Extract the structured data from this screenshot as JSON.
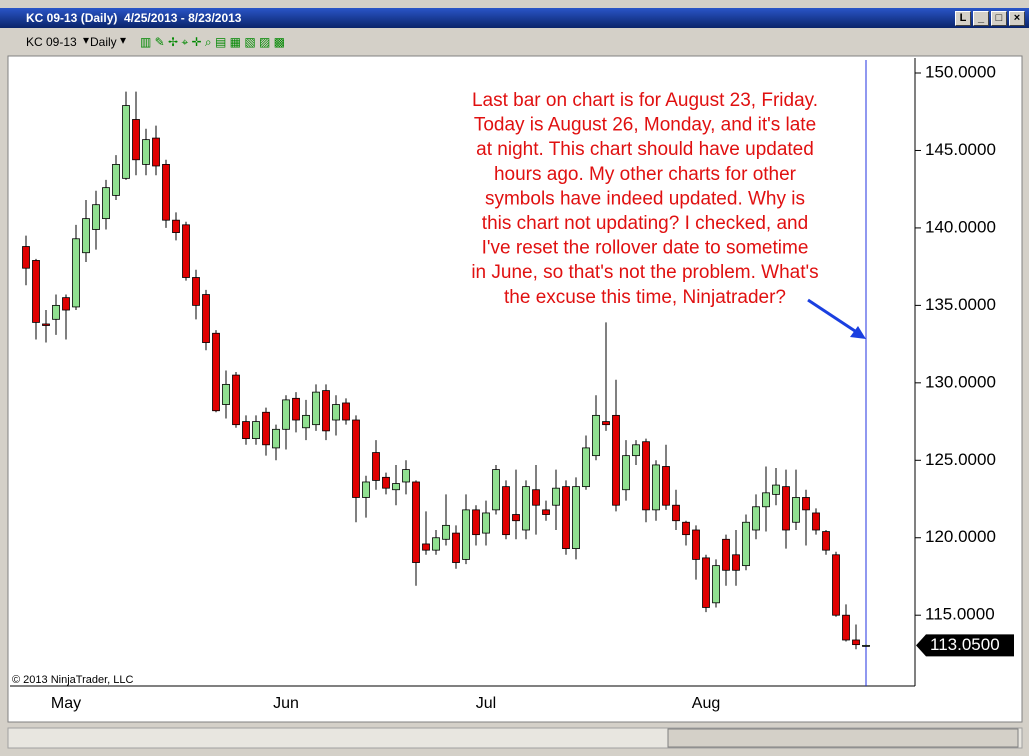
{
  "window": {
    "title": "KC 09-13 (Daily)  4/25/2013 - 8/23/2013",
    "pin_button": "L"
  },
  "toolbar": {
    "instrument": "KC 09-13",
    "interval": "Daily"
  },
  "chart_data": {
    "type": "candlestick",
    "categories": [
      null,
      null,
      null,
      null,
      "May",
      null,
      null,
      null,
      null,
      null,
      null,
      null,
      null,
      null,
      null,
      null,
      null,
      null,
      null,
      null,
      null,
      null,
      null,
      null,
      null,
      null,
      "Jun",
      null,
      null,
      null,
      null,
      null,
      null,
      null,
      null,
      null,
      null,
      null,
      null,
      null,
      null,
      null,
      null,
      null,
      null,
      null,
      "Jul",
      null,
      null,
      null,
      null,
      null,
      null,
      null,
      null,
      null,
      null,
      null,
      null,
      null,
      null,
      null,
      null,
      null,
      null,
      null,
      null,
      null,
      "Aug",
      null,
      null,
      null,
      null,
      null,
      null,
      null,
      null,
      null,
      null,
      null,
      null,
      null,
      null,
      null,
      null
    ],
    "open": [
      138.8,
      137.9,
      133.8,
      134.1,
      135.5,
      134.9,
      138.4,
      139.9,
      140.6,
      142.1,
      143.2,
      147.0,
      144.1,
      145.8,
      144.1,
      140.5,
      140.2,
      136.8,
      135.7,
      133.2,
      128.6,
      130.5,
      127.5,
      126.4,
      128.1,
      125.8,
      127.0,
      129.0,
      127.1,
      127.3,
      129.5,
      127.6,
      128.7,
      127.6,
      122.6,
      125.5,
      123.9,
      123.1,
      123.6,
      123.6,
      119.6,
      119.2,
      119.9,
      120.3,
      118.6,
      121.8,
      120.3,
      121.8,
      123.3,
      121.5,
      120.5,
      123.1,
      121.8,
      122.1,
      123.3,
      119.3,
      123.3,
      125.3,
      127.5,
      127.9,
      123.1,
      125.3,
      126.2,
      121.8,
      124.6,
      122.1,
      121.0,
      120.5,
      118.7,
      115.8,
      119.9,
      118.9,
      118.2,
      120.5,
      122.0,
      122.8,
      123.3,
      121.0,
      122.6,
      121.6,
      120.4,
      118.9,
      115.0,
      113.4,
      113.05
    ],
    "high": [
      139.5,
      138.0,
      134.7,
      135.7,
      135.7,
      140.2,
      141.8,
      142.4,
      143.1,
      144.7,
      148.8,
      148.8,
      146.4,
      146.6,
      144.4,
      141.0,
      140.4,
      137.3,
      136.0,
      133.4,
      130.8,
      130.7,
      127.9,
      127.9,
      128.4,
      127.3,
      129.2,
      129.4,
      128.9,
      129.9,
      129.9,
      129.2,
      129.0,
      127.9,
      124.0,
      126.3,
      124.2,
      124.7,
      125.0,
      123.7,
      121.7,
      120.5,
      122.8,
      120.8,
      122.8,
      122.1,
      122.4,
      124.7,
      123.7,
      124.4,
      123.7,
      124.7,
      122.4,
      124.4,
      123.7,
      123.9,
      126.6,
      129.2,
      133.9,
      130.2,
      126.3,
      126.3,
      126.4,
      125.0,
      126.0,
      123.1,
      121.1,
      120.8,
      118.9,
      118.6,
      120.2,
      120.5,
      121.5,
      122.8,
      124.6,
      124.5,
      124.4,
      124.4,
      123.1,
      121.9,
      120.5,
      119.1,
      115.7,
      114.4,
      113.1
    ],
    "low": [
      136.3,
      132.8,
      132.6,
      133.1,
      132.8,
      134.7,
      137.8,
      138.6,
      139.9,
      141.8,
      143.1,
      143.4,
      143.4,
      143.4,
      140.0,
      139.2,
      136.6,
      134.1,
      132.1,
      128.1,
      127.7,
      127.1,
      126.0,
      126.0,
      125.3,
      125.0,
      125.7,
      126.8,
      126.3,
      126.9,
      126.3,
      126.6,
      127.3,
      121.0,
      121.3,
      123.1,
      122.8,
      122.1,
      122.8,
      116.9,
      118.9,
      118.9,
      119.5,
      118.0,
      118.3,
      119.5,
      119.5,
      121.5,
      119.9,
      119.9,
      119.9,
      120.2,
      121.1,
      120.5,
      118.9,
      118.6,
      123.1,
      125.0,
      126.9,
      121.7,
      122.4,
      124.7,
      121.0,
      121.1,
      121.8,
      120.5,
      119.5,
      117.3,
      115.2,
      115.5,
      116.9,
      116.9,
      117.9,
      119.9,
      120.4,
      122.1,
      119.3,
      120.5,
      119.5,
      120.2,
      118.9,
      114.9,
      113.3,
      112.8,
      113.0
    ],
    "close": [
      137.4,
      133.9,
      133.7,
      135.0,
      134.7,
      139.3,
      140.6,
      141.5,
      142.6,
      144.1,
      147.9,
      144.4,
      145.7,
      144.0,
      140.5,
      139.7,
      136.8,
      135.0,
      132.6,
      128.2,
      129.9,
      127.3,
      126.4,
      127.5,
      126.0,
      127.0,
      128.9,
      127.6,
      127.9,
      129.4,
      126.9,
      128.6,
      127.6,
      122.6,
      123.6,
      123.7,
      123.2,
      123.5,
      124.4,
      118.4,
      119.2,
      120.0,
      120.8,
      118.4,
      121.8,
      120.2,
      121.6,
      124.4,
      120.2,
      121.1,
      123.3,
      122.1,
      121.5,
      123.2,
      119.3,
      123.3,
      125.8,
      127.9,
      127.3,
      122.1,
      125.3,
      126.0,
      121.8,
      124.7,
      122.1,
      121.1,
      120.2,
      118.6,
      115.5,
      118.2,
      117.9,
      117.9,
      121.0,
      122.0,
      122.9,
      123.4,
      120.5,
      122.6,
      121.8,
      120.5,
      119.2,
      115.0,
      113.4,
      113.1,
      113.05
    ],
    "up_color": "#90e090",
    "down_color": "#e00000",
    "ylim": [
      110.43,
      150.84
    ],
    "yticks": [
      {
        "value": 150,
        "label": "150.0000"
      },
      {
        "value": 145,
        "label": "145.0000"
      },
      {
        "value": 140,
        "label": "140.0000"
      },
      {
        "value": 135,
        "label": "135.0000"
      },
      {
        "value": 130,
        "label": "130.0000"
      },
      {
        "value": 125,
        "label": "125.0000"
      },
      {
        "value": 120,
        "label": "120.0000"
      },
      {
        "value": 115,
        "label": "115.0000"
      }
    ],
    "last_price": {
      "value": 113.05,
      "label": "113.0500"
    },
    "annotation": [
      "Last bar on chart is for August 23, Friday.",
      "Today is August 26, Monday, and it's late",
      "at night. This chart should have updated",
      "hours ago. My other charts for other",
      "symbols have indeed updated. Why is",
      "this chart not updating? I checked, and",
      "I've reset the rollover date to sometime",
      "in June, so that's not the problem. What's",
      "the excuse this time, Ninjatrader?"
    ],
    "copyright": "© 2013 NinjaTrader, LLC"
  }
}
